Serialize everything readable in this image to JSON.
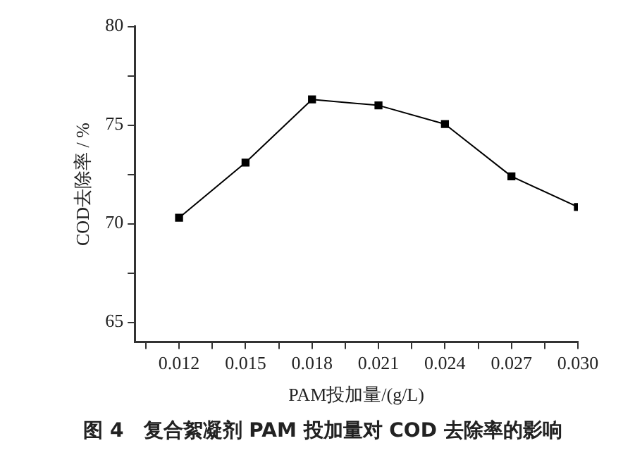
{
  "chart_data": {
    "type": "line",
    "xlabel": "PAM投加量/(g/L)",
    "ylabel": "COD去除率 / %",
    "x": [
      0.012,
      0.015,
      0.018,
      0.021,
      0.024,
      0.027,
      0.03
    ],
    "series": [
      {
        "color": "#000000",
        "values": [
          70.3,
          73.1,
          76.3,
          76.0,
          75.05,
          72.4,
          70.85
        ]
      }
    ],
    "xlim": [
      0.01,
      0.03
    ],
    "xticks": [
      {
        "value": 0.0105,
        "label": null
      },
      0.012,
      {
        "value": 0.0135,
        "label": null
      },
      0.015,
      {
        "value": 0.0165,
        "label": null
      },
      0.018,
      {
        "value": 0.0195,
        "label": null
      },
      0.021,
      {
        "value": 0.0225,
        "label": null
      },
      0.024,
      {
        "value": 0.0255,
        "label": null
      },
      0.027,
      {
        "value": 0.0285,
        "label": null
      },
      {
        "value": 0.03,
        "label": "0.030"
      }
    ],
    "ylim": [
      64,
      80
    ],
    "yticks": [
      65,
      {
        "value": 67.5,
        "label": null
      },
      70,
      {
        "value": 72.5,
        "label": null
      },
      75,
      {
        "value": 77.5,
        "label": null
      },
      80
    ],
    "grid": false,
    "legend": false,
    "marker": "square",
    "line_style": "solid",
    "annotations": [
      "图 4　复合絮凝剂 PAM 投加量对 COD 去除率的影响"
    ]
  }
}
